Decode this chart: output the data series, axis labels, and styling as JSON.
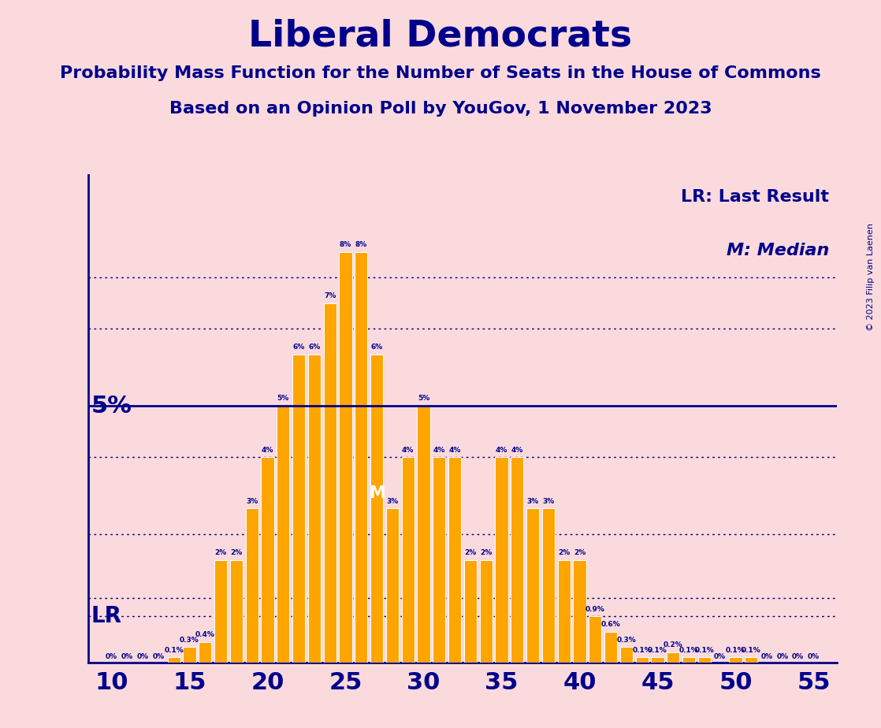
{
  "title": "Liberal Democrats",
  "subtitle1": "Probability Mass Function for the Number of Seats in the House of Commons",
  "subtitle2": "Based on an Opinion Poll by YouGov, 1 November 2023",
  "copyright": "© 2023 Filip van Laenen",
  "background_color": "#FADADD",
  "bar_color": "#FFA500",
  "bar_edge_color": "#FFFFFF",
  "title_color": "#00008B",
  "axis_color": "#00008B",
  "text_color": "#00008B",
  "xlim_left": 8.5,
  "xlim_right": 56.5,
  "ylim_bottom": 0,
  "ylim_top": 9.5,
  "seats": [
    10,
    11,
    12,
    13,
    14,
    15,
    16,
    17,
    18,
    19,
    20,
    21,
    22,
    23,
    24,
    25,
    26,
    27,
    28,
    29,
    30,
    31,
    32,
    33,
    34,
    35,
    36,
    37,
    38,
    39,
    40,
    41,
    42,
    43,
    44,
    45,
    46,
    47,
    48,
    49,
    50,
    51,
    52,
    53,
    54,
    55
  ],
  "probabilities": [
    0.0,
    0.0,
    0.0,
    0.0,
    0.1,
    0.3,
    0.4,
    2.0,
    2.0,
    3.0,
    4.0,
    5.0,
    6.0,
    6.0,
    7.0,
    8.0,
    8.0,
    6.0,
    3.0,
    4.0,
    5.0,
    4.0,
    4.0,
    2.0,
    2.0,
    4.0,
    4.0,
    3.0,
    3.0,
    2.0,
    2.0,
    0.9,
    0.6,
    0.3,
    0.1,
    0.1,
    0.2,
    0.1,
    0.1,
    0.0,
    0.1,
    0.1,
    0.0,
    0.0,
    0.0,
    0.0
  ],
  "lr_line_y": 0.9,
  "five_pct_y": 5.0,
  "median_seat": 27,
  "dotted_lines_y": [
    7.5,
    6.5,
    4.0,
    2.5,
    1.25
  ],
  "legend_lr_label": "LR: Last Result",
  "legend_m_label": "M: Median",
  "five_pct_label": "5%",
  "lr_label": "LR",
  "bar_label_fontsize": 6.5,
  "tick_fontsize": 22,
  "title_fontsize": 34,
  "subtitle_fontsize": 16,
  "label_fontsize": 20,
  "legend_fontsize": 16,
  "copyright_fontsize": 8
}
